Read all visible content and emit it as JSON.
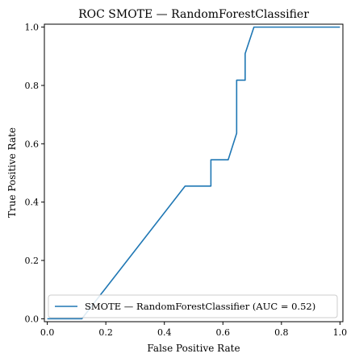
{
  "chart_data": {
    "type": "line",
    "title": "ROC SMOTE — RandomForestClassifier",
    "xlabel": "False Positive Rate",
    "ylabel": "True Positive Rate",
    "xlim": [
      -0.01,
      1.01
    ],
    "ylim": [
      -0.01,
      1.01
    ],
    "xticks": [
      0.0,
      0.2,
      0.4,
      0.6,
      0.8,
      1.0
    ],
    "xtick_labels": [
      "0.0",
      "0.2",
      "0.4",
      "0.6",
      "0.8",
      "1.0"
    ],
    "yticks": [
      0.0,
      0.2,
      0.4,
      0.6,
      0.8,
      1.0
    ],
    "ytick_labels": [
      "0.0",
      "0.2",
      "0.4",
      "0.6",
      "0.8",
      "1.0"
    ],
    "grid": false,
    "legend_position": "lower-right",
    "series": [
      {
        "name": "SMOTE — RandomForestClassifier (AUC = 0.52)",
        "color": "#1f77b4",
        "x": [
          0.0,
          0.118,
          0.471,
          0.559,
          0.559,
          0.618,
          0.647,
          0.647,
          0.676,
          0.676,
          0.706,
          1.0
        ],
        "y": [
          0.0,
          0.0,
          0.455,
          0.455,
          0.545,
          0.545,
          0.636,
          0.818,
          0.818,
          0.909,
          1.0,
          1.0
        ]
      }
    ]
  }
}
